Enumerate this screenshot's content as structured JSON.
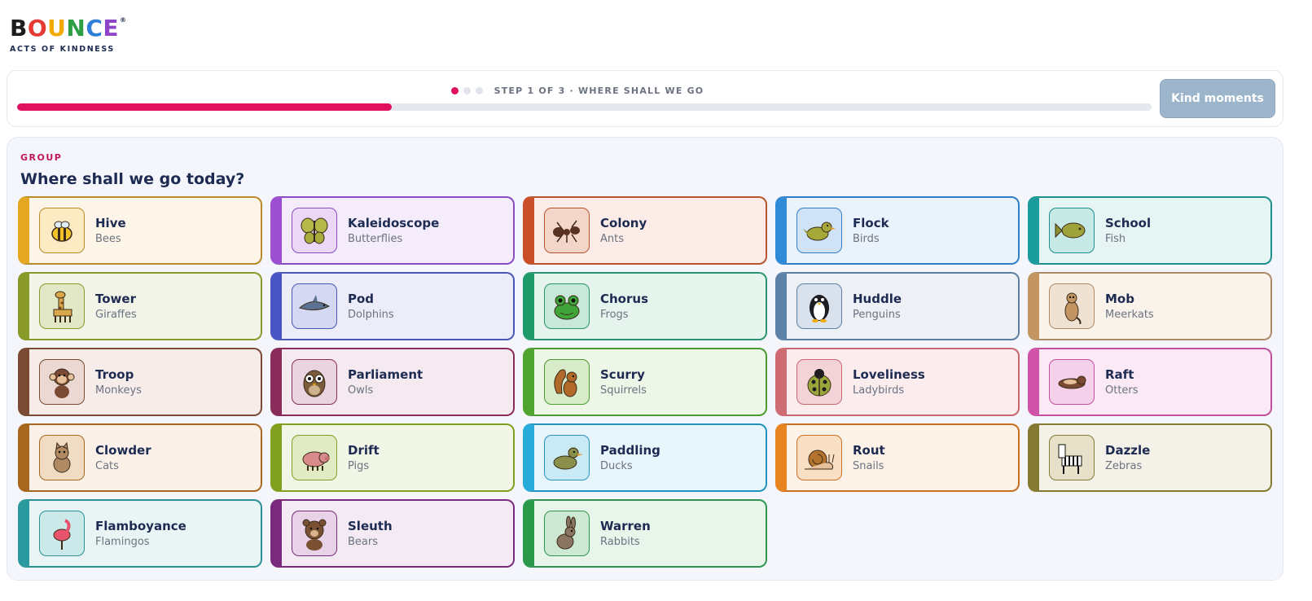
{
  "brand": {
    "letters": [
      {
        "ch": "B",
        "color": "#1d1d1d"
      },
      {
        "ch": "O",
        "color": "#e53935"
      },
      {
        "ch": "U",
        "color": "#f2a900"
      },
      {
        "ch": "N",
        "color": "#2e9e44"
      },
      {
        "ch": "C",
        "color": "#2f7fd8"
      },
      {
        "ch": "E",
        "color": "#8e44c9"
      }
    ],
    "registered": "®",
    "tagline": "ACTS OF KINDNESS"
  },
  "progress": {
    "step_text": "STEP 1 OF 3 · WHERE SHALL WE GO",
    "total_steps": 3,
    "current_step": 1,
    "fraction": 0.33,
    "accent": "#e0115f"
  },
  "kind_button": {
    "label": "Kind moments"
  },
  "group": {
    "label": "GROUP",
    "title": "Where shall we go today?",
    "items": [
      {
        "name": "Hive",
        "animal": "Bees",
        "icon": "bee-icon",
        "accent": "#e5a823",
        "bg": "#fdf5e7",
        "border": "#b98a2a",
        "box_bg": "#fcebc2"
      },
      {
        "name": "Kaleidoscope",
        "animal": "Butterflies",
        "icon": "butterfly-icon",
        "accent": "#9c4fd0",
        "bg": "#f4ecfa",
        "border": "#8a4cc2",
        "box_bg": "#ead8f6"
      },
      {
        "name": "Colony",
        "animal": "Ants",
        "icon": "ant-icon",
        "accent": "#c84f27",
        "bg": "#fbece7",
        "border": "#b8552e",
        "box_bg": "#f4d5c9"
      },
      {
        "name": "Flock",
        "animal": "Birds",
        "icon": "bird-icon",
        "accent": "#2f8ad8",
        "bg": "#eaf2fc",
        "border": "#2f7fc8",
        "box_bg": "#cfe2f6"
      },
      {
        "name": "School",
        "animal": "Fish",
        "icon": "fish-icon",
        "accent": "#1a9c9c",
        "bg": "#e6f5f4",
        "border": "#1d9090",
        "box_bg": "#c6e9e6"
      },
      {
        "name": "Tower",
        "animal": "Giraffes",
        "icon": "giraffe-icon",
        "accent": "#8a9a2a",
        "bg": "#f2f4e8",
        "border": "#8a9a2a",
        "box_bg": "#e2e8c6"
      },
      {
        "name": "Pod",
        "animal": "Dolphins",
        "icon": "dolphin-icon",
        "accent": "#4a55c4",
        "bg": "#ecedf9",
        "border": "#4a55b8",
        "box_bg": "#d4d8f2"
      },
      {
        "name": "Chorus",
        "animal": "Frogs",
        "icon": "frog-icon",
        "accent": "#1f9a6a",
        "bg": "#e6f4ee",
        "border": "#2b9370",
        "box_bg": "#c8e8da"
      },
      {
        "name": "Huddle",
        "animal": "Penguins",
        "icon": "penguin-icon",
        "accent": "#5d82a9",
        "bg": "#edf1f6",
        "border": "#5d7fa3",
        "box_bg": "#d8e1ec"
      },
      {
        "name": "Mob",
        "animal": "Meerkats",
        "icon": "meerkat-icon",
        "accent": "#c29563",
        "bg": "#faf3ec",
        "border": "#b08a62",
        "box_bg": "#f0e2d2"
      },
      {
        "name": "Troop",
        "animal": "Monkeys",
        "icon": "monkey-icon",
        "accent": "#7a4a33",
        "bg": "#f6ecea",
        "border": "#7a4a33",
        "box_bg": "#ecd8d2"
      },
      {
        "name": "Parliament",
        "animal": "Owls",
        "icon": "owl-icon",
        "accent": "#8a2c5a",
        "bg": "#f5eaf0",
        "border": "#8a2c5a",
        "box_bg": "#ead4df"
      },
      {
        "name": "Scurry",
        "animal": "Squirrels",
        "icon": "squirrel-icon",
        "accent": "#4fa52f",
        "bg": "#eef6e8",
        "border": "#4a9a30",
        "box_bg": "#d8ecca"
      },
      {
        "name": "Loveliness",
        "animal": "Ladybirds",
        "icon": "ladybird-icon",
        "accent": "#cf6b73",
        "bg": "#fbecee",
        "border": "#c96570",
        "box_bg": "#f4d3d7"
      },
      {
        "name": "Raft",
        "animal": "Otters",
        "icon": "otter-icon",
        "accent": "#cf54a9",
        "bg": "#fbeaf6",
        "border": "#c24f9f",
        "box_bg": "#f5d0ea"
      },
      {
        "name": "Clowder",
        "animal": "Cats",
        "icon": "cat-icon",
        "accent": "#a8671f",
        "bg": "#fbf1e8",
        "border": "#a8671f",
        "box_bg": "#f0dcc3"
      },
      {
        "name": "Drift",
        "animal": "Pigs",
        "icon": "pig-icon",
        "accent": "#82a020",
        "bg": "#f2f6e6",
        "border": "#82a020",
        "box_bg": "#e0eac3"
      },
      {
        "name": "Paddling",
        "animal": "Ducks",
        "icon": "duck-icon",
        "accent": "#27abd9",
        "bg": "#e8f6fb",
        "border": "#2293bf",
        "box_bg": "#c9eaf5"
      },
      {
        "name": "Rout",
        "animal": "Snails",
        "icon": "snail-icon",
        "accent": "#e8841f",
        "bg": "#fdf2e7",
        "border": "#c96f1d",
        "box_bg": "#f9dfc3"
      },
      {
        "name": "Dazzle",
        "animal": "Zebras",
        "icon": "zebra-icon",
        "accent": "#857a33",
        "bg": "#f4f2e8",
        "border": "#857a33",
        "box_bg": "#e6e1c8"
      },
      {
        "name": "Flamboyance",
        "animal": "Flamingos",
        "icon": "flamingo-icon",
        "accent": "#2a9a9e",
        "bg": "#e8f5f4",
        "border": "#2a9095",
        "box_bg": "#cbe9e8"
      },
      {
        "name": "Sleuth",
        "animal": "Bears",
        "icon": "bear-icon",
        "accent": "#7a2a7c",
        "bg": "#f4eaf4",
        "border": "#7a2a7c",
        "box_bg": "#e8d2e8"
      },
      {
        "name": "Warren",
        "animal": "Rabbits",
        "icon": "rabbit-icon",
        "accent": "#2a9a4a",
        "bg": "#e8f5ea",
        "border": "#2f9450",
        "box_bg": "#cde9d3"
      }
    ]
  }
}
